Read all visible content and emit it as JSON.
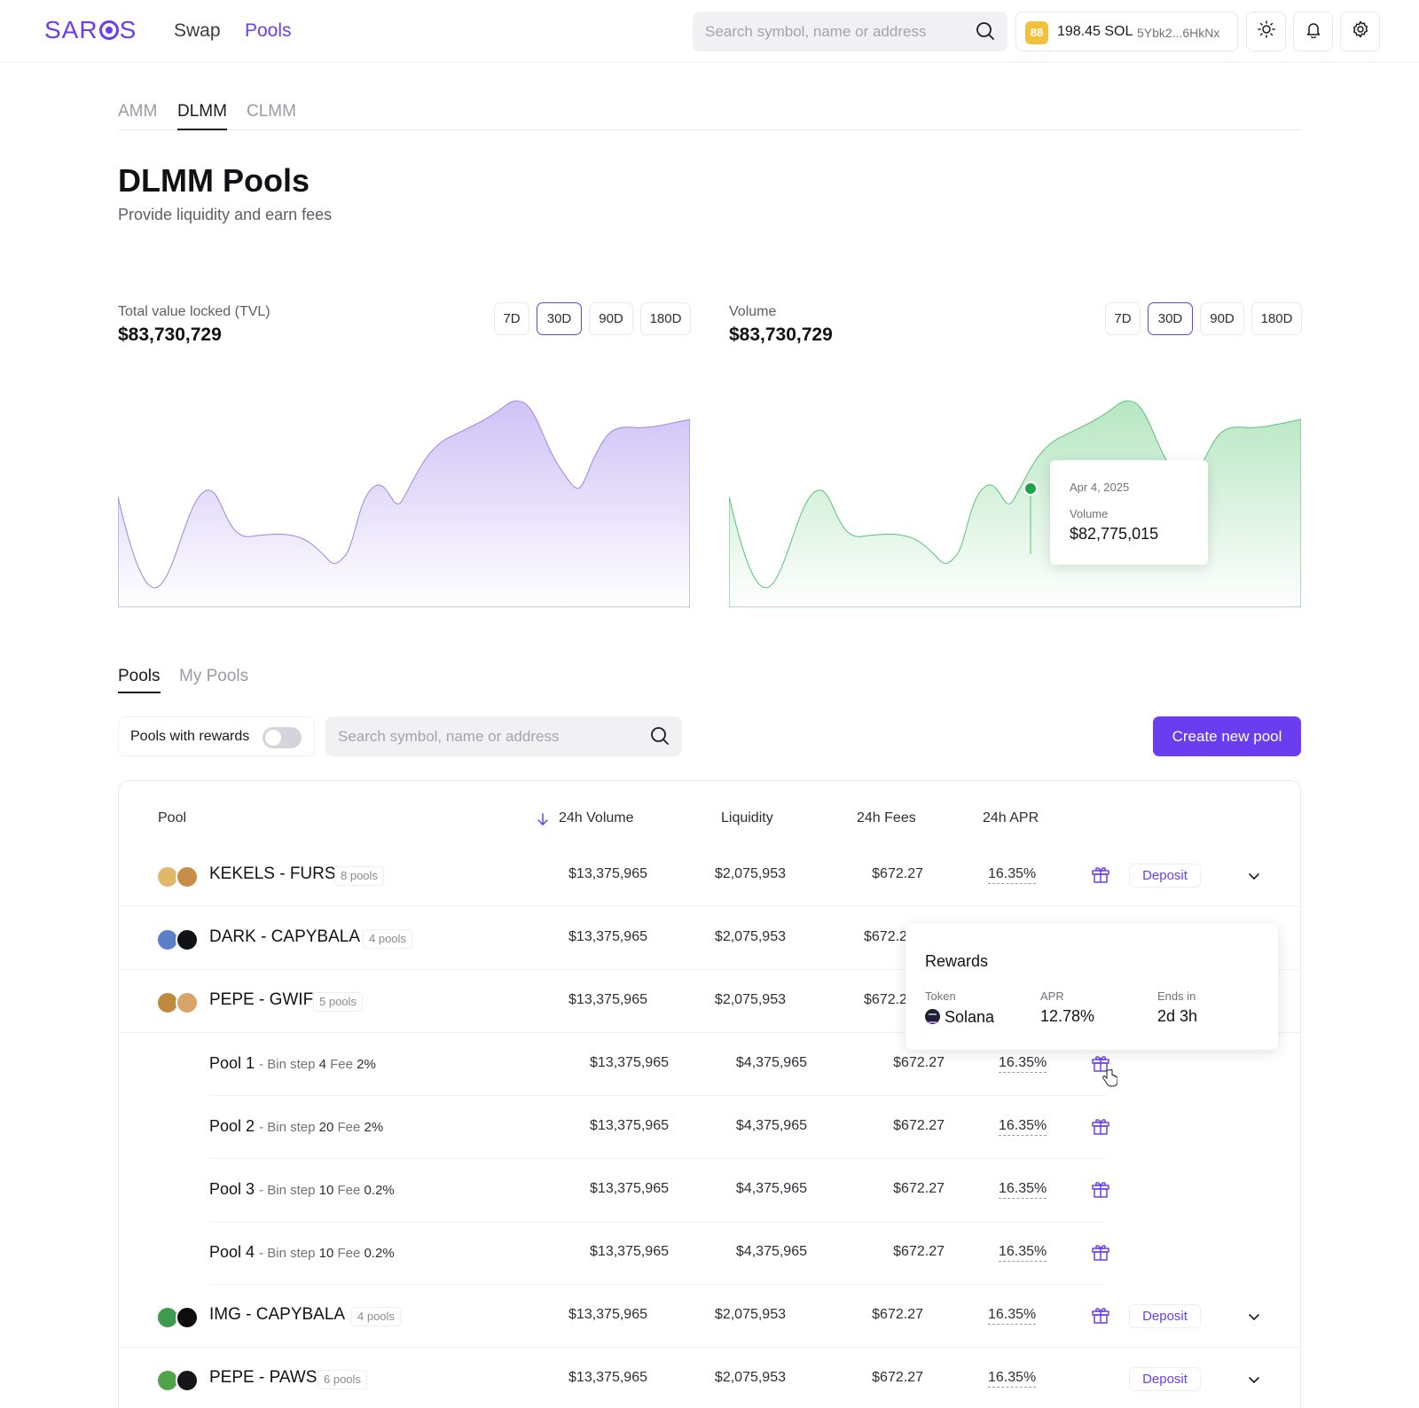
{
  "header": {
    "logo": "SAROS",
    "nav": [
      "Swap",
      "Pools"
    ],
    "search_placeholder": "Search symbol, name or address",
    "wallet_icon": "wallet-app-icon",
    "wallet_balance": "198.45 SOL",
    "wallet_address": "5Ybk2...6HkNx",
    "icons": [
      "sun-icon",
      "bell-icon",
      "gear-icon"
    ]
  },
  "type_tabs": [
    "AMM",
    "DLMM",
    "CLMM"
  ],
  "page": {
    "title": "DLMM Pools",
    "subtitle": "Provide liquidity and earn fees"
  },
  "tvl": {
    "label": "Total value locked (TVL)",
    "value": "$83,730,729"
  },
  "volume": {
    "label": "Volume",
    "value": "$83,730,729"
  },
  "ranges": [
    "7D",
    "30D",
    "90D",
    "180D"
  ],
  "chart_tooltip": {
    "date": "Apr 4, 2025",
    "label": "Volume",
    "value": "$82,775,015"
  },
  "pool_tabs": [
    "Pools",
    "My Pools"
  ],
  "filters": {
    "rewards_label": "Pools with rewards",
    "search_placeholder": "Search symbol, name or address",
    "create_label": "Create new pool"
  },
  "table": {
    "columns": [
      "Pool",
      "24h Volume",
      "Liquidity",
      "24h Fees",
      "24h APR"
    ],
    "deposit_label": "Deposit",
    "pairs": [
      {
        "name": "KEKELS - FURS",
        "badge": "8 pools",
        "volume": "$13,375,965",
        "liquidity": "$2,075,953",
        "fees": "$672.27",
        "apr": "16.35%"
      },
      {
        "name": "DARK - CAPYBALA",
        "badge": "4 pools",
        "volume": "$13,375,965",
        "liquidity": "$2,075,953",
        "fees": "$672.2",
        "apr": ""
      },
      {
        "name": "PEPE - GWIF",
        "badge": "5 pools",
        "volume": "$13,375,965",
        "liquidity": "$2,075,953",
        "fees": "$672.2",
        "apr": ""
      },
      {
        "name": "IMG - CAPYBALA",
        "badge": "4 pools",
        "volume": "$13,375,965",
        "liquidity": "$2,075,953",
        "fees": "$672.27",
        "apr": "16.35%"
      },
      {
        "name": "PEPE - PAWS",
        "badge": "6 pools",
        "volume": "$13,375,965",
        "liquidity": "$2,075,953",
        "fees": "$672.27",
        "apr": "16.35%"
      }
    ],
    "sub_pools": [
      {
        "name": "Pool 1",
        "bin_label": "Bin step",
        "bin": "4",
        "fee_label": "Fee",
        "fee": "2%",
        "volume": "$13,375,965",
        "liquidity": "$4,375,965",
        "fees": "$672.27",
        "apr": "16.35%"
      },
      {
        "name": "Pool 2",
        "bin_label": "Bin step",
        "bin": "20",
        "fee_label": "Fee",
        "fee": "2%",
        "volume": "$13,375,965",
        "liquidity": "$4,375,965",
        "fees": "$672.27",
        "apr": "16.35%"
      },
      {
        "name": "Pool 3",
        "bin_label": "Bin step",
        "bin": "10",
        "fee_label": "Fee",
        "fee": "0.2%",
        "volume": "$13,375,965",
        "liquidity": "$4,375,965",
        "fees": "$672.27",
        "apr": "16.35%"
      },
      {
        "name": "Pool 4",
        "bin_label": "Bin step",
        "bin": "10",
        "fee_label": "Fee",
        "fee": "0.2%",
        "volume": "$13,375,965",
        "liquidity": "$4,375,965",
        "fees": "$672.27",
        "apr": "16.35%"
      }
    ]
  },
  "rewards_popup": {
    "title": "Rewards",
    "token_label": "Token",
    "token": "Solana",
    "apr_label": "APR",
    "apr": "12.78%",
    "ends_label": "Ends in",
    "ends": "2d 3h"
  },
  "colors": {
    "accent": "#6a3ef0",
    "tvl_fill": "#d6c9f7",
    "volume_fill": "#bfe9c8",
    "volume_dot": "#1fa34a"
  }
}
